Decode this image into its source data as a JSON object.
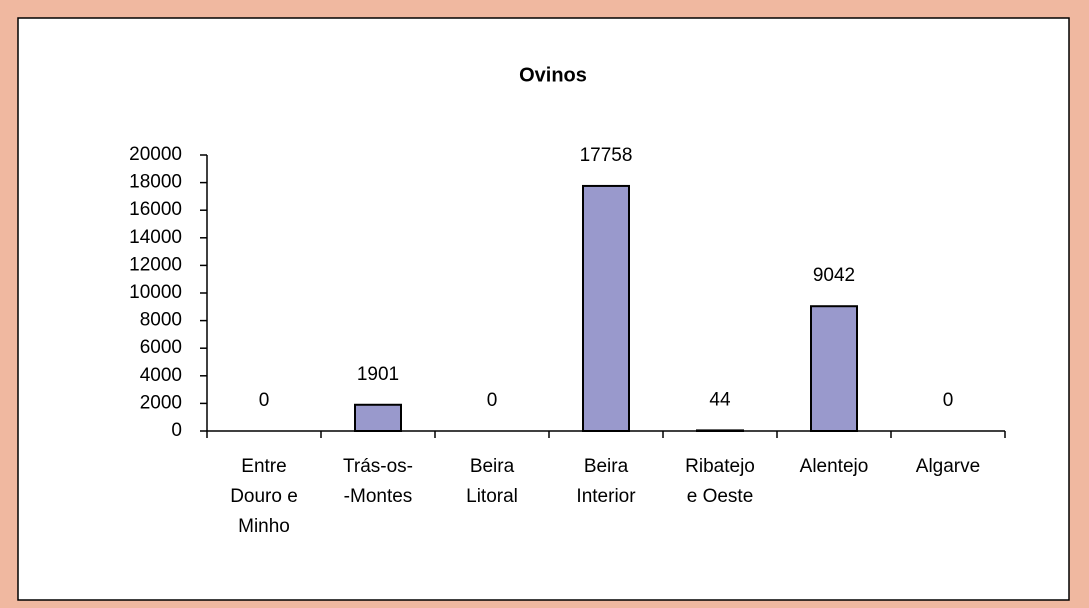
{
  "chart_data": {
    "type": "bar",
    "title": "Ovinos",
    "categories": [
      [
        "Entre",
        "Douro e",
        "Minho"
      ],
      [
        "Trás-os-",
        "-Montes"
      ],
      [
        "Beira",
        "Litoral"
      ],
      [
        "Beira",
        "Interior"
      ],
      [
        "Ribatejo",
        "e Oeste"
      ],
      [
        "Alentejo"
      ],
      [
        "Algarve"
      ]
    ],
    "values": [
      0,
      1901,
      0,
      17758,
      44,
      9042,
      0
    ],
    "color": "#9999cc",
    "ylim": [
      0,
      20000
    ],
    "yticks": [
      0,
      2000,
      4000,
      6000,
      8000,
      10000,
      12000,
      14000,
      16000,
      18000,
      20000
    ],
    "grid": false
  }
}
